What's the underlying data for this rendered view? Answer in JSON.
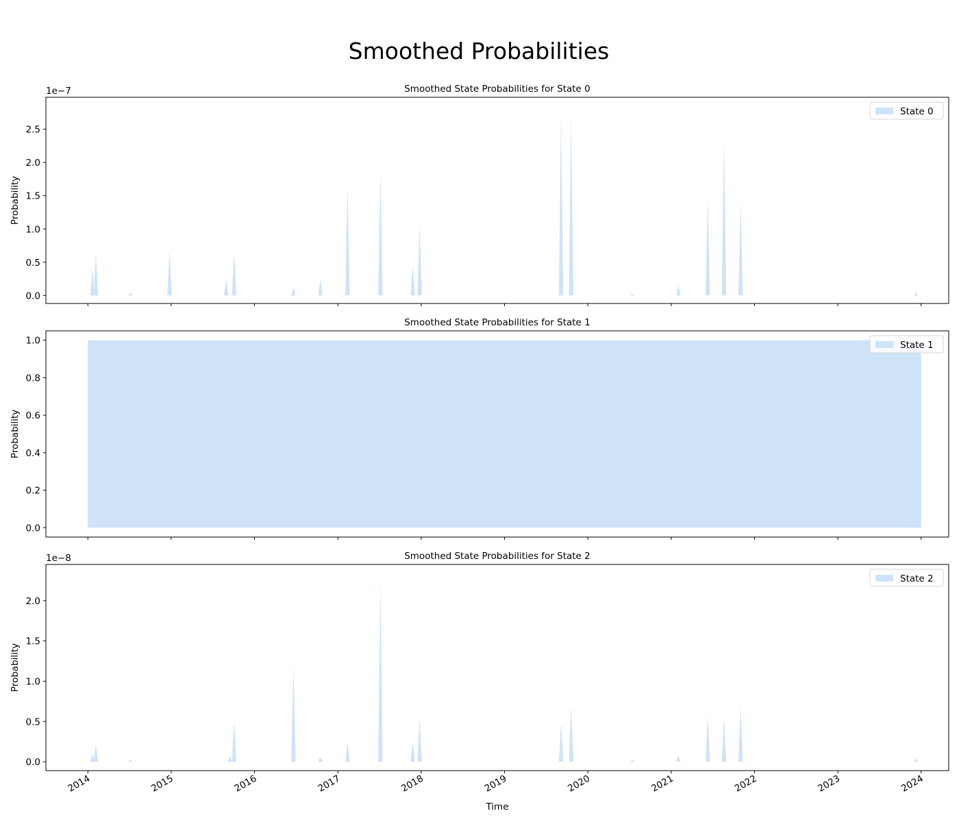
{
  "figure": {
    "title": "Smoothed Probabilities",
    "fill_color": "#cfe3f8",
    "xlabel": "Time",
    "x_tick_labels": [
      "2014",
      "2015",
      "2016",
      "2017",
      "2018",
      "2019",
      "2020",
      "2021",
      "2022",
      "2023",
      "2024"
    ]
  },
  "chart_data": [
    {
      "type": "area",
      "title": "Smoothed State Probabilities for State 0",
      "ylabel": "Probability",
      "offset_text": "1e−7",
      "scale": 1e-07,
      "legend": "State 0",
      "legend_position": "top-right",
      "xlim": [
        "2013-07-01",
        "2024-05-01"
      ],
      "ylim": [
        -0.12,
        2.98
      ],
      "y_tick_values": [
        0.0,
        0.5,
        1.0,
        1.5,
        2.0,
        2.5
      ],
      "y_tick_labels": [
        "0.0",
        "0.5",
        "1.0",
        "1.5",
        "2.0",
        "2.5"
      ],
      "x_range": [
        "2014-01-01",
        "2024-01-01"
      ],
      "base_value": 0,
      "spikes": [
        {
          "x": "2014-01-21",
          "y": 0.4
        },
        {
          "x": "2014-02-05",
          "y": 0.65
        },
        {
          "x": "2014-07-06",
          "y": 0.05
        },
        {
          "x": "2014-12-25",
          "y": 0.68
        },
        {
          "x": "2015-08-30",
          "y": 0.25
        },
        {
          "x": "2015-10-04",
          "y": 0.65
        },
        {
          "x": "2016-06-20",
          "y": 0.12
        },
        {
          "x": "2016-10-16",
          "y": 0.25
        },
        {
          "x": "2017-02-12",
          "y": 1.65
        },
        {
          "x": "2017-07-06",
          "y": 1.9
        },
        {
          "x": "2017-11-25",
          "y": 0.45
        },
        {
          "x": "2017-12-25",
          "y": 1.08
        },
        {
          "x": "2019-09-06",
          "y": 2.75
        },
        {
          "x": "2019-10-20",
          "y": 2.75
        },
        {
          "x": "2020-07-15",
          "y": 0.03
        },
        {
          "x": "2021-02-01",
          "y": 0.15
        },
        {
          "x": "2021-06-10",
          "y": 1.5
        },
        {
          "x": "2021-08-20",
          "y": 2.38
        },
        {
          "x": "2021-11-01",
          "y": 1.42
        },
        {
          "x": "2023-12-10",
          "y": 0.05
        }
      ]
    },
    {
      "type": "area",
      "title": "Smoothed State Probabilities for State 1",
      "ylabel": "Probability",
      "legend": "State 1",
      "legend_position": "top-right",
      "xlim": [
        "2013-07-01",
        "2024-05-01"
      ],
      "ylim": [
        -0.05,
        1.05
      ],
      "y_tick_values": [
        0.0,
        0.2,
        0.4,
        0.6,
        0.8,
        1.0
      ],
      "y_tick_labels": [
        "0.0",
        "0.2",
        "0.4",
        "0.6",
        "0.8",
        "1.0"
      ],
      "x_range": [
        "2014-01-01",
        "2024-01-01"
      ],
      "base_value": 1.0,
      "spikes": []
    },
    {
      "type": "area",
      "title": "Smoothed State Probabilities for State 2",
      "ylabel": "Probability",
      "offset_text": "1e−8",
      "scale": 1e-08,
      "legend": "State 2",
      "legend_position": "top-right",
      "xlim": [
        "2013-07-01",
        "2024-05-01"
      ],
      "ylim": [
        -0.11,
        2.45
      ],
      "y_tick_values": [
        0.0,
        0.5,
        1.0,
        1.5,
        2.0
      ],
      "y_tick_labels": [
        "0.0",
        "0.5",
        "1.0",
        "1.5",
        "2.0"
      ],
      "x_range": [
        "2014-01-01",
        "2024-01-01"
      ],
      "base_value": 0,
      "spikes": [
        {
          "x": "2014-01-21",
          "y": 0.1
        },
        {
          "x": "2014-02-05",
          "y": 0.22
        },
        {
          "x": "2014-07-06",
          "y": 0.03
        },
        {
          "x": "2015-09-15",
          "y": 0.08
        },
        {
          "x": "2015-10-04",
          "y": 0.5
        },
        {
          "x": "2016-06-20",
          "y": 1.2
        },
        {
          "x": "2016-10-16",
          "y": 0.06
        },
        {
          "x": "2017-02-12",
          "y": 0.25
        },
        {
          "x": "2017-07-06",
          "y": 2.28
        },
        {
          "x": "2017-11-25",
          "y": 0.25
        },
        {
          "x": "2017-12-25",
          "y": 0.55
        },
        {
          "x": "2019-09-06",
          "y": 0.48
        },
        {
          "x": "2019-10-20",
          "y": 0.7
        },
        {
          "x": "2020-07-15",
          "y": 0.03
        },
        {
          "x": "2021-02-01",
          "y": 0.08
        },
        {
          "x": "2021-06-10",
          "y": 0.58
        },
        {
          "x": "2021-08-20",
          "y": 0.55
        },
        {
          "x": "2021-11-01",
          "y": 0.7
        },
        {
          "x": "2023-12-10",
          "y": 0.04
        }
      ]
    }
  ]
}
